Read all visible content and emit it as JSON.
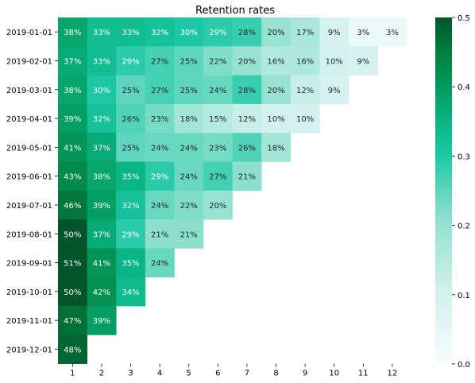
{
  "chart_data": {
    "type": "heatmap",
    "title": "Retention rates",
    "xlabel": "",
    "ylabel": "",
    "columns": [
      "1",
      "2",
      "3",
      "4",
      "5",
      "6",
      "7",
      "8",
      "9",
      "10",
      "11",
      "12"
    ],
    "rows": [
      "2019-01-01",
      "2019-02-01",
      "2019-03-01",
      "2019-04-01",
      "2019-05-01",
      "2019-06-01",
      "2019-07-01",
      "2019-08-01",
      "2019-09-01",
      "2019-10-01",
      "2019-11-01",
      "2019-12-01"
    ],
    "values": [
      [
        0.38,
        0.33,
        0.33,
        0.32,
        0.3,
        0.29,
        0.28,
        0.2,
        0.17,
        0.09,
        0.03,
        0.03
      ],
      [
        0.37,
        0.33,
        0.29,
        0.27,
        0.25,
        0.22,
        0.2,
        0.16,
        0.16,
        0.1,
        0.09
      ],
      [
        0.38,
        0.3,
        0.25,
        0.27,
        0.25,
        0.24,
        0.28,
        0.2,
        0.12,
        0.09
      ],
      [
        0.39,
        0.32,
        0.26,
        0.23,
        0.18,
        0.15,
        0.12,
        0.1,
        0.1
      ],
      [
        0.41,
        0.37,
        0.25,
        0.24,
        0.24,
        0.23,
        0.26,
        0.18
      ],
      [
        0.43,
        0.38,
        0.35,
        0.29,
        0.24,
        0.27,
        0.21
      ],
      [
        0.46,
        0.39,
        0.32,
        0.24,
        0.22,
        0.2
      ],
      [
        0.5,
        0.37,
        0.29,
        0.21,
        0.21
      ],
      [
        0.51,
        0.41,
        0.35,
        0.24
      ],
      [
        0.5,
        0.42,
        0.34
      ],
      [
        0.47,
        0.39
      ],
      [
        0.48
      ]
    ],
    "value_format": "percent",
    "color_range": [
      0.0,
      0.5
    ],
    "colorbar_ticks": [
      "0.0",
      "0.1",
      "0.2",
      "0.3",
      "0.4",
      "0.5"
    ],
    "colormap": [
      {
        "v": 0.0,
        "color": "#f7fcfd"
      },
      {
        "v": 0.1,
        "color": "#d3f2ee"
      },
      {
        "v": 0.2,
        "color": "#97e2d1"
      },
      {
        "v": 0.25,
        "color": "#5ed6bd"
      },
      {
        "v": 0.3,
        "color": "#1ec8a5"
      },
      {
        "v": 0.35,
        "color": "#0ab585"
      },
      {
        "v": 0.4,
        "color": "#049a5c"
      },
      {
        "v": 0.45,
        "color": "#03803f"
      },
      {
        "v": 0.5,
        "color": "#00552b"
      }
    ],
    "grid": false,
    "legend": "colorbar-right"
  }
}
